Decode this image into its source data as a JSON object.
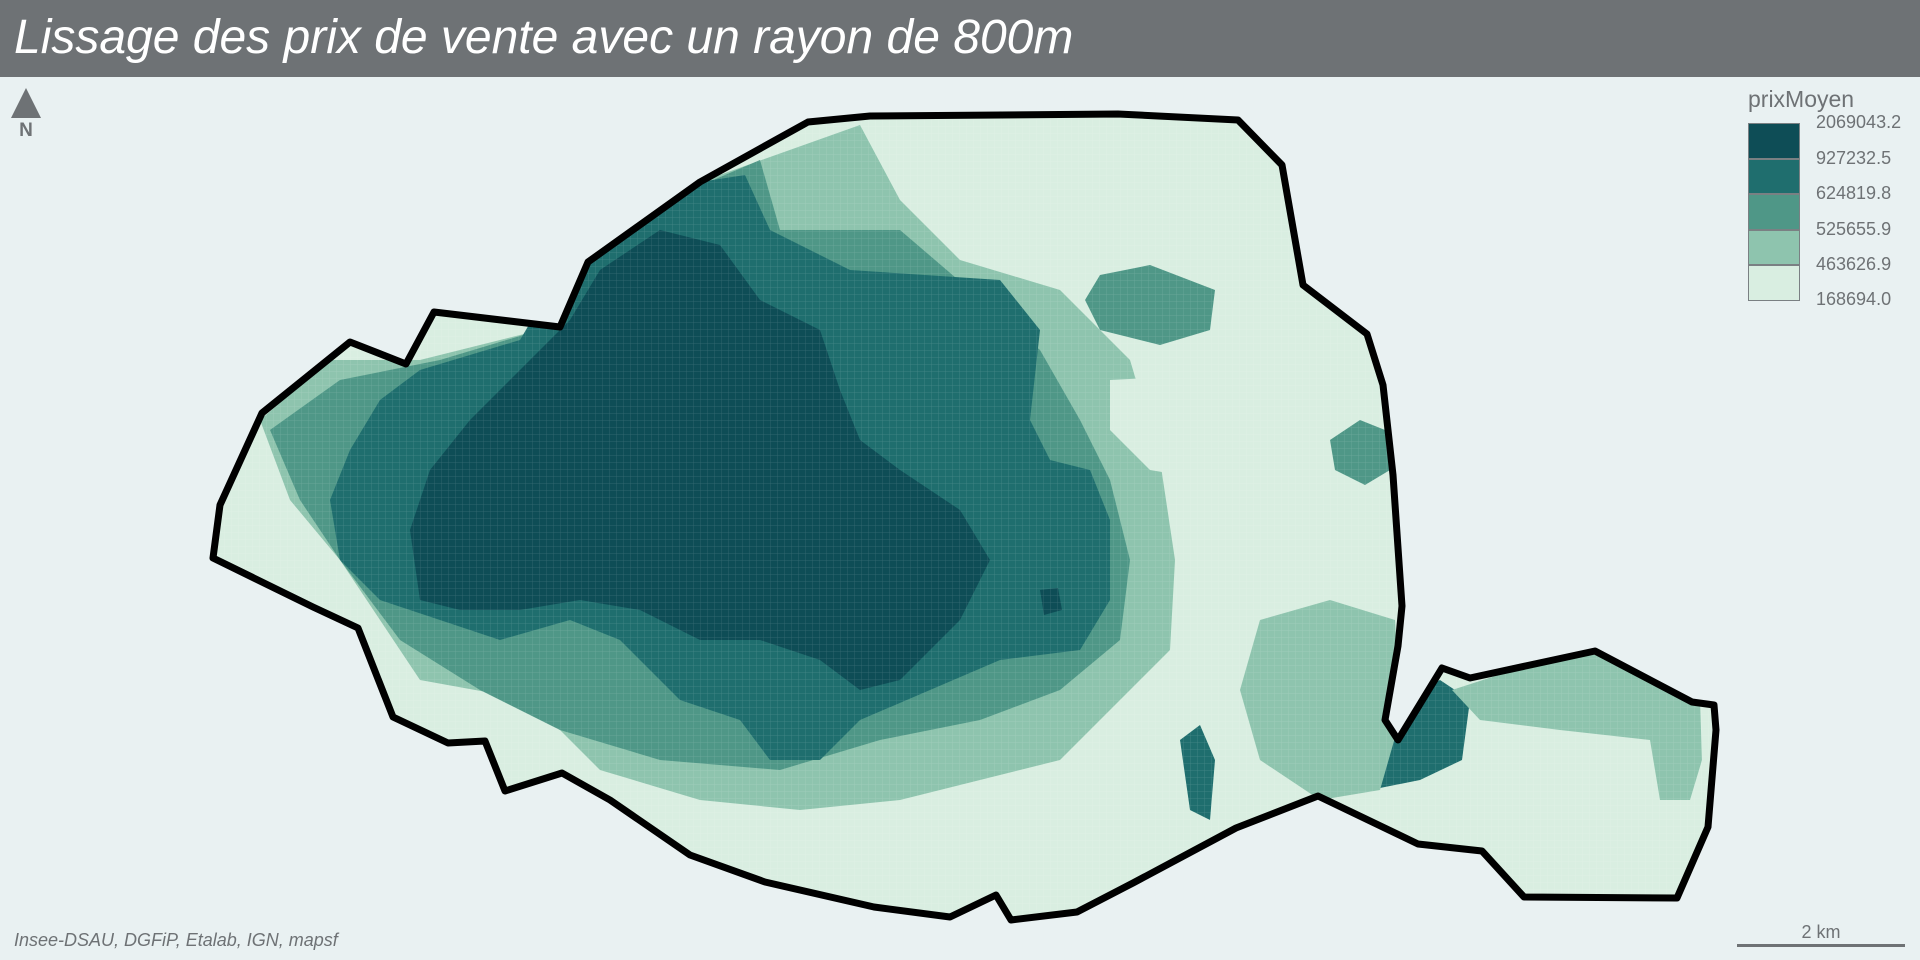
{
  "title": "Lissage des prix de vente avec un rayon de 800m",
  "north": {
    "label": "N",
    "icon": "north-arrow-icon"
  },
  "legend": {
    "title": "prixMoyen",
    "breaks": [
      "2069043.2",
      "927232.5",
      "624819.8",
      "525655.9",
      "463626.9",
      "168694.0"
    ],
    "colors": [
      "#0e4d56",
      "#1f6e6e",
      "#4f9787",
      "#8ec4ae",
      "#d9eee1"
    ]
  },
  "source": "Insee-DSAU, DGFiP, Etalab, IGN, mapsf",
  "scale": {
    "label": "2 km"
  }
}
